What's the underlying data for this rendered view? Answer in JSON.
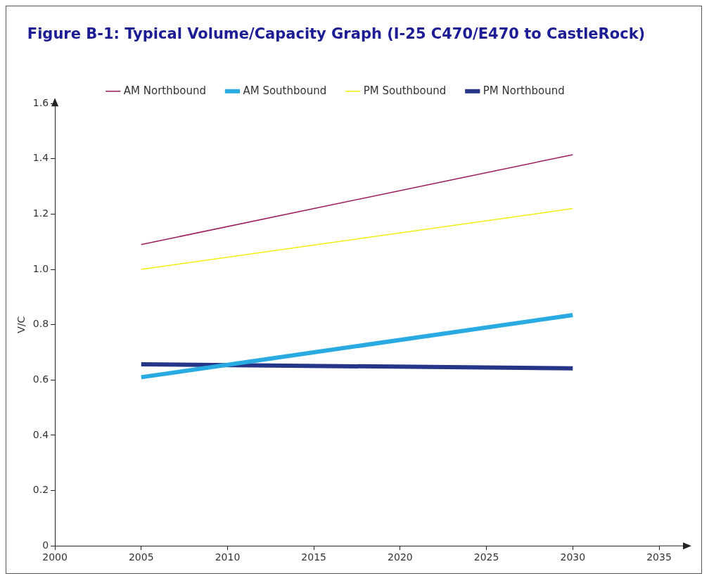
{
  "chart_data": {
    "type": "line",
    "title": "Figure B-1: Typical Volume/Capacity Graph (I-25 C470/E470 to CastleRock)",
    "ylabel": "V/C",
    "x": [
      2005,
      2030
    ],
    "series": [
      {
        "name": "AM Northbound",
        "color": "#9b1c5c",
        "values": [
          1.09,
          1.415
        ]
      },
      {
        "name": "AM Southbound",
        "color": "#29abe2",
        "values": [
          0.61,
          0.835
        ]
      },
      {
        "name": "PM Southbound",
        "color": "#f2ee10",
        "values": [
          1.0,
          1.22
        ]
      },
      {
        "name": "PM Northbound",
        "color": "#253688",
        "values": [
          0.657,
          0.642
        ]
      }
    ],
    "xlim": [
      2000,
      2035
    ],
    "xticks": [
      2000,
      2005,
      2010,
      2015,
      2020,
      2025,
      2030,
      2035
    ],
    "ylim": [
      0,
      1.6
    ],
    "yticks": [
      0,
      0.2,
      0.4,
      0.6,
      0.8,
      {
        "value": 1,
        "label": "1.0"
      },
      1.2,
      1.4,
      1.6
    ],
    "grid": false,
    "legend": "top",
    "marker": "none",
    "line_style": "solid"
  }
}
